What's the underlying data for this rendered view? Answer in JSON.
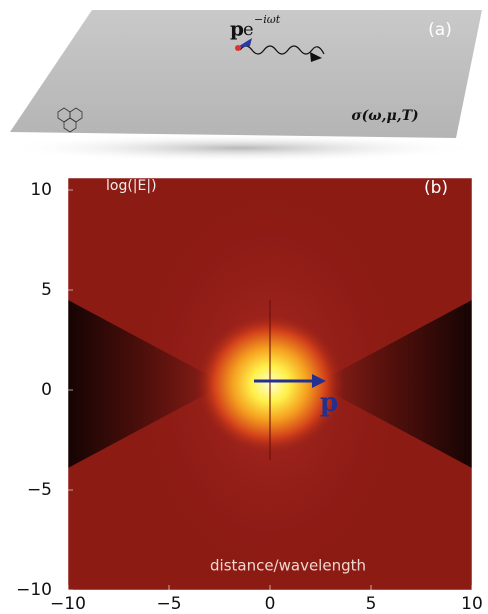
{
  "panel_a": {
    "label": "(a)",
    "dipole_symbol": "p",
    "exponential": "e",
    "exponent": "−iωt",
    "conductivity": "σ(ω,μ,T)"
  },
  "chart_data": {
    "type": "heatmap",
    "label": "(b)",
    "colorbar_title": "log(|E|)",
    "xlabel": "distance/wavelength",
    "dipole_label": "p",
    "xlim": [
      -10,
      10
    ],
    "ylim": [
      -10,
      10
    ],
    "xticks": [
      {
        "value": -10,
        "label": "−10"
      },
      {
        "value": -5,
        "label": "−5"
      },
      0,
      5,
      10
    ],
    "yticks": [
      {
        "value": -10,
        "label": "−10"
      },
      {
        "value": -5,
        "label": "−5"
      },
      0,
      5,
      10
    ]
  }
}
